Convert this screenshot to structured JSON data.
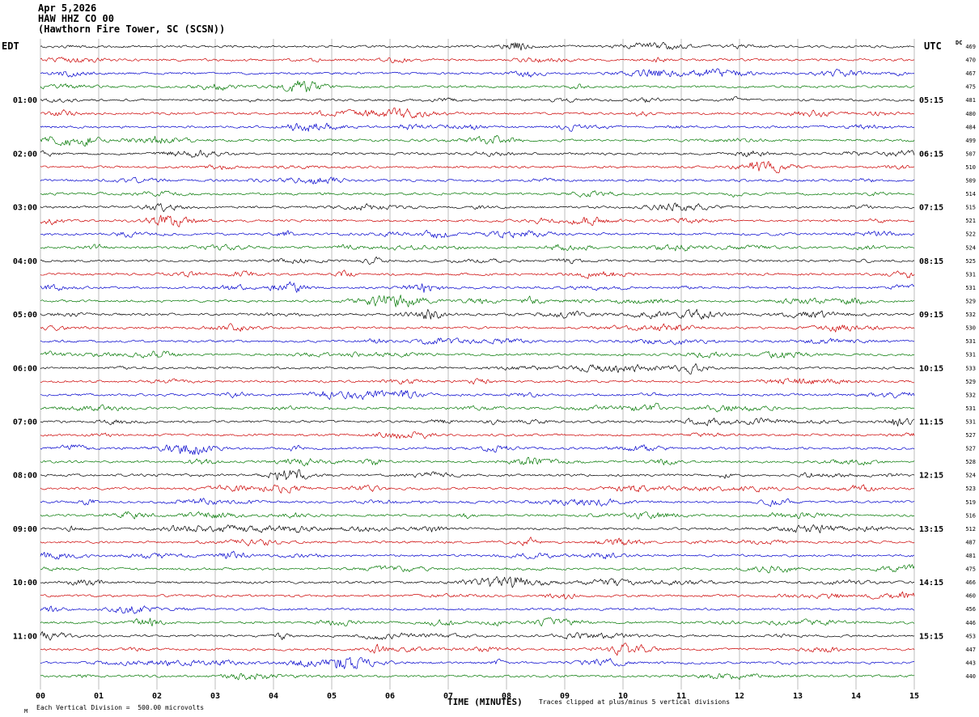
{
  "header": {
    "date": "Apr 5,2026",
    "station": "HAW HHZ CO 00",
    "location": "(Hawthorn Fire Tower, SC (SCSN))",
    "left_timezone": "EDT",
    "right_timezone": "UTC",
    "dc_column": "DC"
  },
  "footer": {
    "corner_mark": "M",
    "scale_note": "Each Vertical Division =  500.00 microvolts",
    "clip_note": "Traces clipped at plus/minus 5 vertical divisions"
  },
  "chart_data": {
    "type": "line",
    "subtype": "seismogram_helicorder",
    "station_code": "HAW HHZ CO 00",
    "station_name": "Hawthorn Fire Tower, SC (SCSN)",
    "date": "Apr 5,2026",
    "xlabel": "TIME (MINUTES)",
    "x_ticks": [
      "00",
      "01",
      "02",
      "03",
      "04",
      "05",
      "06",
      "07",
      "08",
      "09",
      "10",
      "11",
      "12",
      "13",
      "14",
      "15"
    ],
    "x_range_minutes": [
      0,
      15
    ],
    "minutes_per_row": 15,
    "rows_per_hour": 4,
    "left_time_zone": "EDT",
    "right_time_zone": "UTC",
    "microvolts_per_division": 500.0,
    "clip_divisions": 5,
    "color_cycle": [
      "black",
      "red",
      "blue",
      "green"
    ],
    "palette": {
      "black": "#000000",
      "red": "#cc0000",
      "blue": "#0000cc",
      "green": "#007700"
    },
    "grid": {
      "vertical_lines": true,
      "horizontal_lines": false,
      "color": "#909090"
    },
    "rows": [
      {
        "edt": "",
        "utc": "",
        "dc": 469
      },
      {
        "edt": "",
        "utc": "",
        "dc": 470
      },
      {
        "edt": "",
        "utc": "",
        "dc": 467
      },
      {
        "edt": "",
        "utc": "",
        "dc": 475
      },
      {
        "edt": "01:00",
        "utc": "05:15",
        "dc": 481
      },
      {
        "edt": "",
        "utc": "",
        "dc": 480
      },
      {
        "edt": "",
        "utc": "",
        "dc": 484
      },
      {
        "edt": "",
        "utc": "",
        "dc": 499
      },
      {
        "edt": "02:00",
        "utc": "06:15",
        "dc": 507
      },
      {
        "edt": "",
        "utc": "",
        "dc": 510
      },
      {
        "edt": "",
        "utc": "",
        "dc": 509
      },
      {
        "edt": "",
        "utc": "",
        "dc": 514
      },
      {
        "edt": "03:00",
        "utc": "07:15",
        "dc": 515
      },
      {
        "edt": "",
        "utc": "",
        "dc": 521
      },
      {
        "edt": "",
        "utc": "",
        "dc": 522
      },
      {
        "edt": "",
        "utc": "",
        "dc": 524
      },
      {
        "edt": "04:00",
        "utc": "08:15",
        "dc": 525
      },
      {
        "edt": "",
        "utc": "",
        "dc": 531
      },
      {
        "edt": "",
        "utc": "",
        "dc": 531
      },
      {
        "edt": "",
        "utc": "",
        "dc": 529
      },
      {
        "edt": "05:00",
        "utc": "09:15",
        "dc": 532
      },
      {
        "edt": "",
        "utc": "",
        "dc": 530
      },
      {
        "edt": "",
        "utc": "",
        "dc": 531
      },
      {
        "edt": "",
        "utc": "",
        "dc": 531
      },
      {
        "edt": "06:00",
        "utc": "10:15",
        "dc": 533
      },
      {
        "edt": "",
        "utc": "",
        "dc": 529
      },
      {
        "edt": "",
        "utc": "",
        "dc": 532
      },
      {
        "edt": "",
        "utc": "",
        "dc": 531
      },
      {
        "edt": "07:00",
        "utc": "11:15",
        "dc": 531
      },
      {
        "edt": "",
        "utc": "",
        "dc": 527
      },
      {
        "edt": "",
        "utc": "",
        "dc": 527
      },
      {
        "edt": "",
        "utc": "",
        "dc": 528
      },
      {
        "edt": "08:00",
        "utc": "12:15",
        "dc": 524
      },
      {
        "edt": "",
        "utc": "",
        "dc": 523
      },
      {
        "edt": "",
        "utc": "",
        "dc": 519
      },
      {
        "edt": "",
        "utc": "",
        "dc": 516
      },
      {
        "edt": "09:00",
        "utc": "13:15",
        "dc": 512
      },
      {
        "edt": "",
        "utc": "",
        "dc": 487
      },
      {
        "edt": "",
        "utc": "",
        "dc": 481
      },
      {
        "edt": "",
        "utc": "",
        "dc": 475
      },
      {
        "edt": "10:00",
        "utc": "14:15",
        "dc": 466
      },
      {
        "edt": "",
        "utc": "",
        "dc": 460
      },
      {
        "edt": "",
        "utc": "",
        "dc": 456
      },
      {
        "edt": "",
        "utc": "",
        "dc": 446
      },
      {
        "edt": "11:00",
        "utc": "15:15",
        "dc": 453
      },
      {
        "edt": "",
        "utc": "",
        "dc": 447
      },
      {
        "edt": "",
        "utc": "",
        "dc": 443
      },
      {
        "edt": "",
        "utc": "",
        "dc": 440
      }
    ]
  }
}
